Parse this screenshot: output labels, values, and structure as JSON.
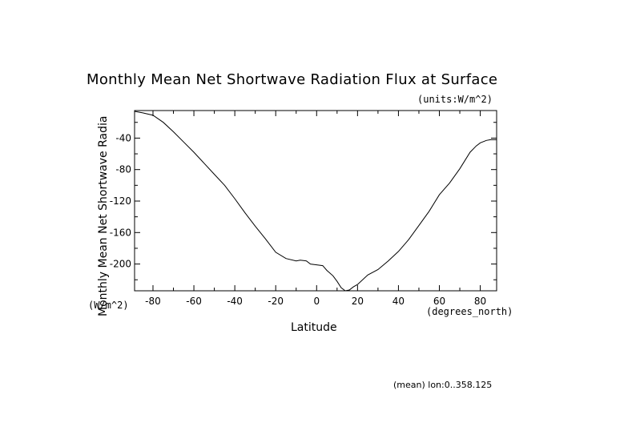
{
  "chart_data": {
    "type": "line",
    "title": "Monthly Mean Net Shortwave Radiation Flux at Surface",
    "units_note": "(units:W/m^2)",
    "xlabel": "Latitude",
    "ylabel": "Monthly Mean Net Shortwave Radia",
    "x_units": "(degrees_north)",
    "y_units": "(W/m^2)",
    "footnote": "(mean) lon:0..358.125",
    "xlim": [
      -89,
      88
    ],
    "ylim": [
      -234,
      -5
    ],
    "x_ticks": [
      -80,
      -60,
      -40,
      -20,
      0,
      20,
      40,
      60,
      80
    ],
    "x_tick_labels": [
      "-80",
      "-60",
      "-40",
      "-20",
      "0",
      "20",
      "40",
      "60",
      "80"
    ],
    "y_ticks": [
      -40,
      -80,
      -120,
      -160,
      -200
    ],
    "y_tick_labels": [
      "-40",
      "-80",
      "-120",
      "-160",
      "-200"
    ],
    "grid": false,
    "series": [
      {
        "x": [
          -89,
          -85,
          -80,
          -75,
          -70,
          -65,
          -60,
          -55,
          -50,
          -45,
          -40,
          -35,
          -30,
          -25,
          -20,
          -15,
          -10,
          -8,
          -5,
          -3,
          0,
          3,
          5,
          8,
          10,
          12,
          14,
          16,
          18,
          20,
          25,
          30,
          35,
          40,
          45,
          50,
          55,
          60,
          65,
          70,
          75,
          78,
          80,
          83,
          85,
          88
        ],
        "y": [
          -6,
          -8,
          -11,
          -20,
          -32,
          -45,
          -58,
          -72,
          -86,
          -100,
          -117,
          -135,
          -152,
          -168,
          -185,
          -193,
          -196,
          -195,
          -196,
          -200,
          -201,
          -202,
          -208,
          -215,
          -222,
          -230,
          -234,
          -233,
          -229,
          -226,
          -214,
          -207,
          -196,
          -184,
          -169,
          -151,
          -133,
          -112,
          -97,
          -79,
          -58,
          -50,
          -46,
          -43,
          -42,
          -42
        ]
      }
    ]
  }
}
